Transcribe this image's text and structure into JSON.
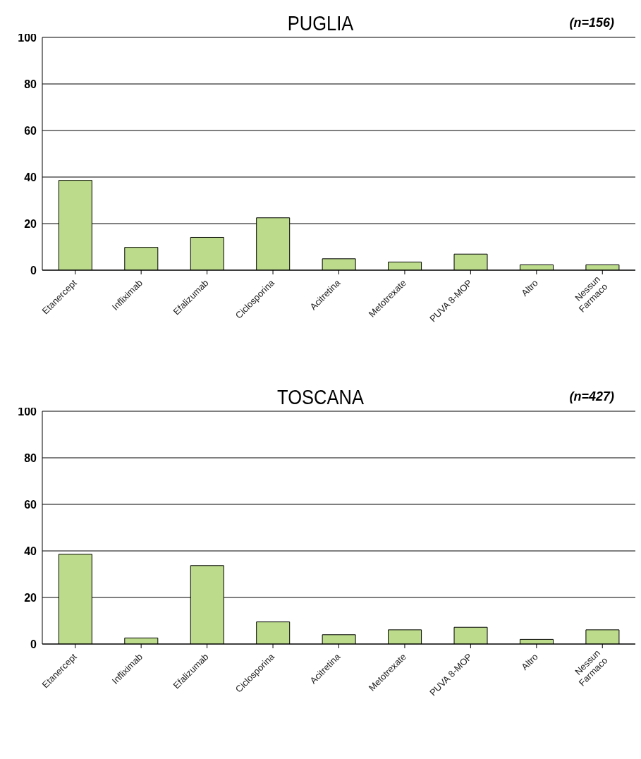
{
  "chart_data": [
    {
      "type": "bar",
      "title": "PUGLIA",
      "annotations": [
        "(n=156)"
      ],
      "categories": [
        "Etanercept",
        "Infliximab",
        "Efalizumab",
        "Ciclosporina",
        "Acitretina",
        "Metotrexate",
        "PUVA 8-MOP",
        "Altro",
        "Nessun Farmaco"
      ],
      "values": [
        38.6,
        9.8,
        14.1,
        22.5,
        4.9,
        3.5,
        6.9,
        2.3,
        2.3
      ],
      "color": "#bcdc8c",
      "ylim": [
        0,
        100
      ],
      "yticks": [
        0,
        20,
        40,
        60,
        80,
        100
      ],
      "grid": "y"
    },
    {
      "type": "bar",
      "title": "TOSCANA",
      "annotations": [
        "(n=427)"
      ],
      "categories": [
        "Etanercept",
        "Infliximab",
        "Efalizumab",
        "Ciclosporina",
        "Acitretina",
        "Metotrexate",
        "PUVA 8-MOP",
        "Altro",
        "Nessun Farmaco"
      ],
      "values": [
        38.6,
        2.6,
        33.7,
        9.5,
        4.0,
        6.1,
        7.2,
        2.0,
        6.1
      ],
      "color": "#bcdc8c",
      "ylim": [
        0,
        100
      ],
      "yticks": [
        0,
        20,
        40,
        60,
        80,
        100
      ],
      "grid": "y"
    }
  ]
}
